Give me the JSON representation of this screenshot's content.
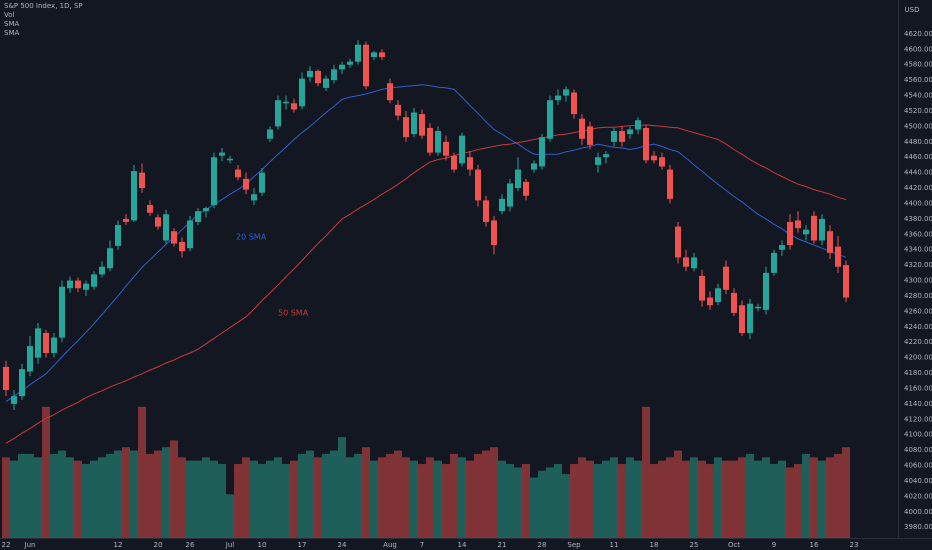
{
  "chart_data": {
    "type": "candlestick",
    "title": "S&P 500 Index, 1D, SP",
    "currency": "USD",
    "up_color": "#26a69a",
    "down_color": "#ef5350",
    "grid": false,
    "categories": [
      "22",
      null,
      null,
      "Jun",
      null,
      null,
      null,
      null,
      null,
      null,
      null,
      null,
      null,
      null,
      "12",
      null,
      null,
      null,
      null,
      "20",
      null,
      null,
      null,
      "26",
      null,
      null,
      null,
      null,
      "Jul",
      null,
      null,
      null,
      "10",
      null,
      null,
      null,
      null,
      "17",
      null,
      null,
      null,
      null,
      "24",
      null,
      null,
      null,
      null,
      null,
      "Aug",
      null,
      null,
      null,
      "7",
      null,
      null,
      null,
      null,
      "14",
      null,
      null,
      null,
      null,
      "21",
      null,
      null,
      null,
      null,
      "28",
      null,
      null,
      null,
      "Sep",
      null,
      null,
      null,
      null,
      "11",
      null,
      null,
      null,
      null,
      "18",
      null,
      null,
      null,
      null,
      "25",
      null,
      null,
      null,
      null,
      "Oct",
      null,
      null,
      null,
      null,
      "9",
      null,
      null,
      null,
      null,
      "16",
      null,
      null,
      null,
      null,
      "23"
    ],
    "open": [
      4188,
      4140,
      4150,
      4182,
      4200,
      4232,
      4206,
      4226,
      4290,
      4300,
      4288,
      4292,
      4308,
      4316,
      4345,
      4380,
      4378,
      4440,
      4398,
      4382,
      4352,
      4364,
      4350,
      4342,
      4376,
      4390,
      4398,
      4462,
      4456,
      4444,
      4432,
      4404,
      4414,
      4484,
      4500,
      4530,
      4530,
      4526,
      4564,
      4572,
      4550,
      4560,
      4574,
      4580,
      4584,
      4606,
      4590,
      4596,
      4556,
      4528,
      4512,
      4490,
      4516,
      4498,
      4466,
      4480,
      4462,
      4452,
      4460,
      4444,
      4404,
      4378,
      4390,
      4396,
      4420,
      4428,
      4444,
      4448,
      4484,
      4534,
      4540,
      4544,
      4510,
      4500,
      4450,
      4460,
      4480,
      4494,
      4490,
      4496,
      4498,
      4462,
      4460,
      4444,
      4370,
      4330,
      4316,
      4306,
      4278,
      4272,
      4318,
      4284,
      4268,
      4232,
      4264,
      4262,
      4310,
      4340,
      4376,
      4378,
      4360,
      4384,
      4352,
      4364,
      4344,
      4320,
      null
    ],
    "high": [
      4196,
      4158,
      4192,
      4228,
      4245,
      4236,
      4232,
      4300,
      4305,
      4304,
      4300,
      4312,
      4325,
      4352,
      4378,
      4386,
      4450,
      4452,
      4404,
      4386,
      4392,
      4368,
      4356,
      4384,
      4394,
      4396,
      4466,
      4472,
      4462,
      4450,
      4440,
      4420,
      4446,
      4500,
      4540,
      4540,
      4536,
      4570,
      4578,
      4574,
      4566,
      4580,
      4584,
      4588,
      4612,
      4610,
      4598,
      4600,
      4562,
      4534,
      4520,
      4524,
      4522,
      4504,
      4500,
      4488,
      4466,
      4492,
      4468,
      4450,
      4410,
      4384,
      4412,
      4432,
      4460,
      4432,
      4456,
      4490,
      4540,
      4548,
      4552,
      4548,
      4516,
      4506,
      4466,
      4468,
      4498,
      4500,
      4500,
      4512,
      4502,
      4468,
      4466,
      4450,
      4376,
      4340,
      4336,
      4314,
      4286,
      4296,
      4326,
      4290,
      4274,
      4276,
      4270,
      4318,
      4340,
      4352,
      4386,
      4390,
      4372,
      4390,
      4386,
      4372,
      4358,
      4326,
      null
    ],
    "low": [
      4150,
      4132,
      4145,
      4176,
      4192,
      4200,
      4200,
      4220,
      4284,
      4285,
      4280,
      4288,
      4304,
      4312,
      4340,
      4372,
      4376,
      4414,
      4384,
      4366,
      4348,
      4344,
      4330,
      4338,
      4372,
      4382,
      4394,
      4455,
      4452,
      4430,
      4412,
      4398,
      4410,
      4480,
      4496,
      4522,
      4518,
      4522,
      4558,
      4552,
      4546,
      4556,
      4568,
      4576,
      4580,
      4548,
      4586,
      4586,
      4530,
      4508,
      4480,
      4486,
      4484,
      4462,
      4462,
      4456,
      4440,
      4448,
      4436,
      4396,
      4370,
      4334,
      4386,
      4390,
      4416,
      4404,
      4440,
      4444,
      4480,
      4528,
      4532,
      4510,
      4476,
      4470,
      4440,
      4452,
      4474,
      4474,
      4484,
      4490,
      4452,
      4452,
      4444,
      4400,
      4322,
      4312,
      4312,
      4266,
      4262,
      4268,
      4282,
      4254,
      4228,
      4224,
      4260,
      4256,
      4306,
      4332,
      4340,
      4362,
      4352,
      4348,
      4346,
      4328,
      4310,
      4272,
      null
    ],
    "close": [
      4158,
      4150,
      4185,
      4215,
      4238,
      4206,
      4226,
      4292,
      4300,
      4290,
      4296,
      4308,
      4318,
      4342,
      4372,
      4376,
      4442,
      4420,
      4388,
      4370,
      4386,
      4348,
      4338,
      4378,
      4390,
      4394,
      4460,
      4466,
      4458,
      4434,
      4418,
      4412,
      4440,
      4496,
      4534,
      4532,
      4522,
      4562,
      4572,
      4556,
      4562,
      4574,
      4580,
      4584,
      4606,
      4552,
      4596,
      4590,
      4534,
      4514,
      4486,
      4518,
      4488,
      4466,
      4494,
      4462,
      4444,
      4488,
      4444,
      4404,
      4376,
      4346,
      4406,
      4426,
      4444,
      4410,
      4452,
      4486,
      4534,
      4540,
      4548,
      4516,
      4484,
      4476,
      4460,
      4464,
      4494,
      4480,
      4496,
      4508,
      4456,
      4456,
      4448,
      4406,
      4330,
      4318,
      4330,
      4274,
      4268,
      4290,
      4288,
      4258,
      4232,
      4270,
      4266,
      4310,
      4336,
      4346,
      4346,
      4368,
      4366,
      4352,
      4380,
      4336,
      4318,
      4278,
      null
    ],
    "series": [
      {
        "name": "Vol",
        "axis": "y2",
        "up_color": "#1e5f5a",
        "down_color": "#7f3336",
        "values": [
          2.4,
          2.3,
          2.5,
          2.5,
          2.4,
          3.9,
          2.5,
          2.6,
          2.4,
          2.3,
          2.2,
          2.3,
          2.4,
          2.5,
          2.6,
          2.7,
          2.6,
          3.9,
          2.5,
          2.6,
          2.7,
          2.9,
          2.4,
          2.3,
          2.3,
          2.4,
          2.3,
          2.2,
          1.3,
          2.2,
          2.4,
          2.3,
          2.2,
          2.3,
          2.4,
          2.2,
          2.3,
          2.5,
          2.6,
          2.4,
          2.5,
          2.6,
          3.0,
          2.4,
          2.5,
          2.7,
          2.3,
          2.4,
          2.5,
          2.6,
          2.4,
          2.3,
          2.2,
          2.4,
          2.3,
          2.2,
          2.5,
          2.4,
          2.3,
          2.5,
          2.6,
          2.7,
          2.3,
          2.2,
          2.1,
          2.2,
          1.8,
          2.0,
          2.1,
          2.2,
          1.9,
          2.2,
          2.4,
          2.3,
          2.2,
          2.3,
          2.4,
          2.2,
          2.4,
          2.3,
          3.9,
          2.2,
          2.3,
          2.4,
          2.6,
          2.3,
          2.4,
          2.3,
          2.2,
          2.4,
          2.3,
          2.3,
          2.4,
          2.5,
          2.3,
          2.4,
          2.2,
          2.3,
          2.1,
          2.2,
          2.5,
          2.4,
          2.3,
          2.4,
          2.5,
          2.7,
          null
        ]
      },
      {
        "name": "SMA",
        "color": "#2f5fd0",
        "values": [
          4143,
          4150,
          4157,
          4165,
          4172,
          4179,
          4190,
          4201,
          4212,
          4222,
          4233,
          4244,
          4256,
          4268,
          4280,
          4293,
          4305,
          4317,
          4327,
          4337,
          4347,
          4356,
          4366,
          4376,
          4386,
          4392,
          4399,
          4405,
          4412,
          4418,
          4425,
          4435,
          4444,
          4454,
          4464,
          4473,
          4483,
          4492,
          4500,
          4509,
          4518,
          4526,
          4535,
          4538,
          4540,
          4542,
          4545,
          4548,
          4550,
          4551,
          4552,
          4553,
          4554,
          4553,
          4551,
          4550,
          4548,
          4538,
          4527,
          4517,
          4506,
          4496,
          4490,
          4483,
          4477,
          4470,
          4464,
          4464,
          4464,
          4464,
          4467,
          4469,
          4472,
          4474,
          4477,
          4475,
          4473,
          4472,
          4470,
          4472,
          4475,
          4477,
          4474,
          4470,
          4467,
          4459,
          4450,
          4442,
          4433,
          4425,
          4417,
          4409,
          4402,
          4394,
          4386,
          4380,
          4373,
          4367,
          4360,
          4354,
          4350,
          4346,
          4342,
          4338,
          4334,
          4330,
          null
        ]
      },
      {
        "name": "SMA",
        "color": "#c8383c",
        "values": [
          4089,
          4095,
          4102,
          4108,
          4115,
          4121,
          4126,
          4132,
          4137,
          4142,
          4148,
          4153,
          4157,
          4162,
          4166,
          4170,
          4175,
          4179,
          4184,
          4188,
          4193,
          4197,
          4202,
          4206,
          4211,
          4218,
          4225,
          4232,
          4239,
          4246,
          4253,
          4263,
          4274,
          4284,
          4294,
          4305,
          4315,
          4326,
          4337,
          4348,
          4358,
          4369,
          4380,
          4386,
          4393,
          4399,
          4405,
          4412,
          4418,
          4425,
          4432,
          4440,
          4447,
          4454,
          4457,
          4459,
          4462,
          4465,
          4467,
          4470,
          4472,
          4474,
          4476,
          4477,
          4479,
          4481,
          4483,
          4485,
          4487,
          4489,
          4490,
          4492,
          4494,
          4496,
          4498,
          4499,
          4499,
          4500,
          4501,
          4501,
          4502,
          4501,
          4500,
          4499,
          4498,
          4495,
          4492,
          4489,
          4486,
          4483,
          4477,
          4470,
          4464,
          4457,
          4451,
          4446,
          4440,
          4435,
          4430,
          4425,
          4422,
          4418,
          4415,
          4412,
          4408,
          4405,
          null
        ]
      }
    ],
    "annotations": [
      {
        "text": "20 SMA",
        "color": "#2f5fd0"
      },
      {
        "text": "50 SMA",
        "color": "#c8383c"
      }
    ],
    "ylim": [
      3966,
      4664
    ],
    "y2lim": [
      0,
      16
    ],
    "yticks": [
      {
        "value": 4620,
        "label": "4620.00"
      },
      {
        "value": 4600,
        "label": "4600.00"
      },
      {
        "value": 4580,
        "label": "4580.00"
      },
      {
        "value": 4560,
        "label": "4560.00"
      },
      {
        "value": 4540,
        "label": "4540.00"
      },
      {
        "value": 4520,
        "label": "4520.00"
      },
      {
        "value": 4500,
        "label": "4500.00"
      },
      {
        "value": 4480,
        "label": "4480.00"
      },
      {
        "value": 4460,
        "label": "4460.00"
      },
      {
        "value": 4440,
        "label": "4440.00"
      },
      {
        "value": 4420,
        "label": "4420.00"
      },
      {
        "value": 4400,
        "label": "4400.00"
      },
      {
        "value": 4380,
        "label": "4380.00"
      },
      {
        "value": 4360,
        "label": "4360.00"
      },
      {
        "value": 4340,
        "label": "4340.00"
      },
      {
        "value": 4320,
        "label": "4320.00"
      },
      {
        "value": 4300,
        "label": "4300.00"
      },
      {
        "value": 4280,
        "label": "4280.00"
      },
      {
        "value": 4260,
        "label": "4260.00"
      },
      {
        "value": 4240,
        "label": "4240.00"
      },
      {
        "value": 4220,
        "label": "4220.00"
      },
      {
        "value": 4200,
        "label": "4200.00"
      },
      {
        "value": 4180,
        "label": "4180.00"
      },
      {
        "value": 4160,
        "label": "4160.00"
      },
      {
        "value": 4140,
        "label": "4140.00"
      },
      {
        "value": 4120,
        "label": "4120.00"
      },
      {
        "value": 4100,
        "label": "4100.00"
      },
      {
        "value": 4080,
        "label": "4080.00"
      },
      {
        "value": 4060,
        "label": "4060.00"
      },
      {
        "value": 4040,
        "label": "4040.00"
      },
      {
        "value": 4020,
        "label": "4020.00"
      },
      {
        "value": 4000,
        "label": "4000.00"
      },
      {
        "value": 3980,
        "label": "3980.00"
      }
    ]
  }
}
